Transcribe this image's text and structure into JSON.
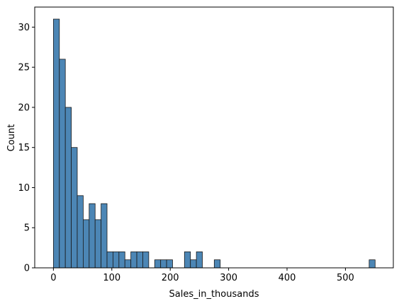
{
  "chart_data": {
    "type": "bar",
    "subtype": "histogram",
    "title": "",
    "xlabel": "Sales_in_thousands",
    "ylabel": "Count",
    "xlim": [
      -32,
      582
    ],
    "ylim": [
      0,
      32.5
    ],
    "bin_width": 10.2,
    "bin_start": 0,
    "counts": [
      31,
      26,
      20,
      15,
      9,
      6,
      8,
      6,
      8,
      2,
      2,
      2,
      1,
      2,
      2,
      2,
      0,
      1,
      1,
      1,
      0,
      0,
      2,
      1,
      2,
      0,
      0,
      1,
      0,
      0,
      0,
      0,
      0,
      0,
      0,
      0,
      0,
      0,
      0,
      0,
      0,
      0,
      0,
      0,
      0,
      0,
      0,
      0,
      0,
      0,
      0,
      0,
      0,
      1
    ],
    "xticks": [
      0,
      100,
      200,
      300,
      400,
      500
    ],
    "yticks": [
      0,
      5,
      10,
      15,
      20,
      25,
      30
    ],
    "grid": false,
    "bar_color": "#4c86b5",
    "edge_color": "#1a1a1a"
  }
}
